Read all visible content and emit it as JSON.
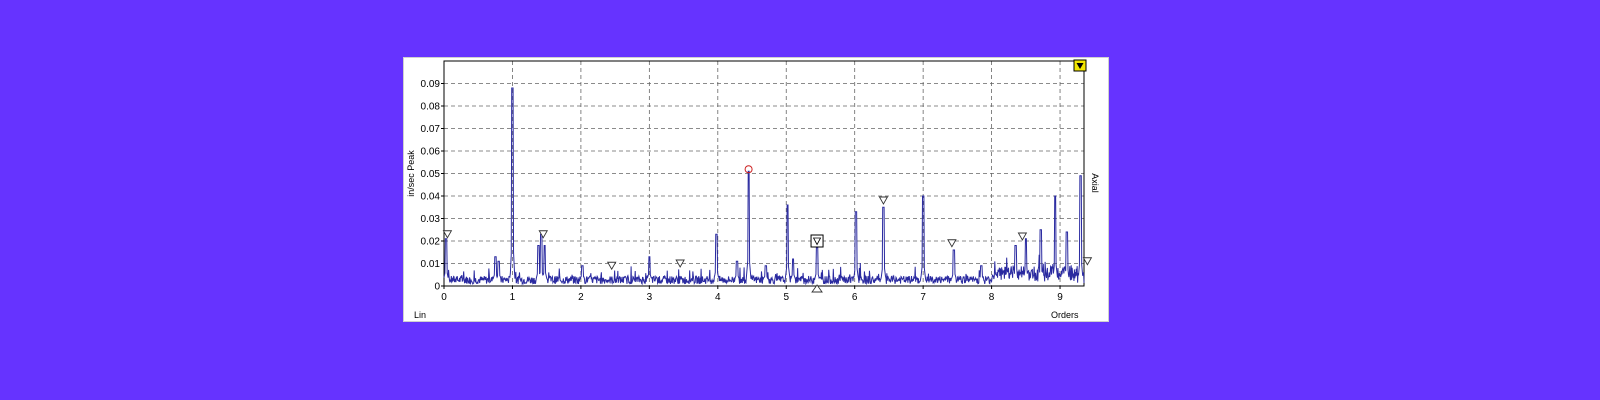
{
  "chart_data": {
    "type": "line",
    "ylabel": "in/sec Peak",
    "xlabel": "Orders",
    "scale_label": "Lin",
    "channel_label": "Axial",
    "xlim": [
      0,
      9.35
    ],
    "ylim": [
      0,
      0.1
    ],
    "x_ticks": [
      0,
      1,
      2,
      3,
      4,
      5,
      6,
      7,
      8,
      9
    ],
    "y_ticks": [
      0,
      0.01,
      0.02,
      0.03,
      0.04,
      0.05,
      0.06,
      0.07,
      0.08,
      0.09
    ],
    "y_tick_labels": [
      "0",
      "0.01",
      "0.02",
      "0.03",
      "0.04",
      "0.05",
      "0.06",
      "0.07",
      "0.08",
      "0.09"
    ],
    "grid": true,
    "line_color": "#2a2aa0",
    "baseline": 0.003,
    "peaks": [
      [
        0.03,
        0.021
      ],
      [
        0.75,
        0.013
      ],
      [
        0.8,
        0.011
      ],
      [
        1.0,
        0.088
      ],
      [
        1.38,
        0.018
      ],
      [
        1.42,
        0.023
      ],
      [
        1.47,
        0.018
      ],
      [
        2.02,
        0.009
      ],
      [
        3.0,
        0.013
      ],
      [
        3.98,
        0.023
      ],
      [
        4.28,
        0.011
      ],
      [
        4.45,
        0.051
      ],
      [
        4.7,
        0.009
      ],
      [
        5.02,
        0.036
      ],
      [
        5.1,
        0.012
      ],
      [
        5.45,
        0.017
      ],
      [
        6.02,
        0.033
      ],
      [
        6.42,
        0.035
      ],
      [
        7.0,
        0.04
      ],
      [
        7.45,
        0.016
      ],
      [
        7.85,
        0.009
      ],
      [
        8.35,
        0.018
      ],
      [
        8.5,
        0.021
      ],
      [
        8.72,
        0.025
      ],
      [
        8.93,
        0.04
      ],
      [
        9.1,
        0.024
      ],
      [
        9.3,
        0.049
      ]
    ],
    "triangle_markers": [
      [
        0.05,
        0.021
      ],
      [
        1.45,
        0.021
      ],
      [
        2.45,
        0.007
      ],
      [
        3.45,
        0.008
      ],
      [
        5.45,
        0.019
      ],
      [
        6.42,
        0.036
      ],
      [
        7.42,
        0.017
      ],
      [
        8.45,
        0.02
      ],
      [
        9.4,
        0.009
      ]
    ],
    "circle_marker": [
      4.45,
      0.051
    ],
    "box_marker": [
      5.45,
      0.02
    ],
    "bottom_marker": [
      5.45,
      0.0
    ],
    "corner_marker_color": "#f2e600"
  }
}
